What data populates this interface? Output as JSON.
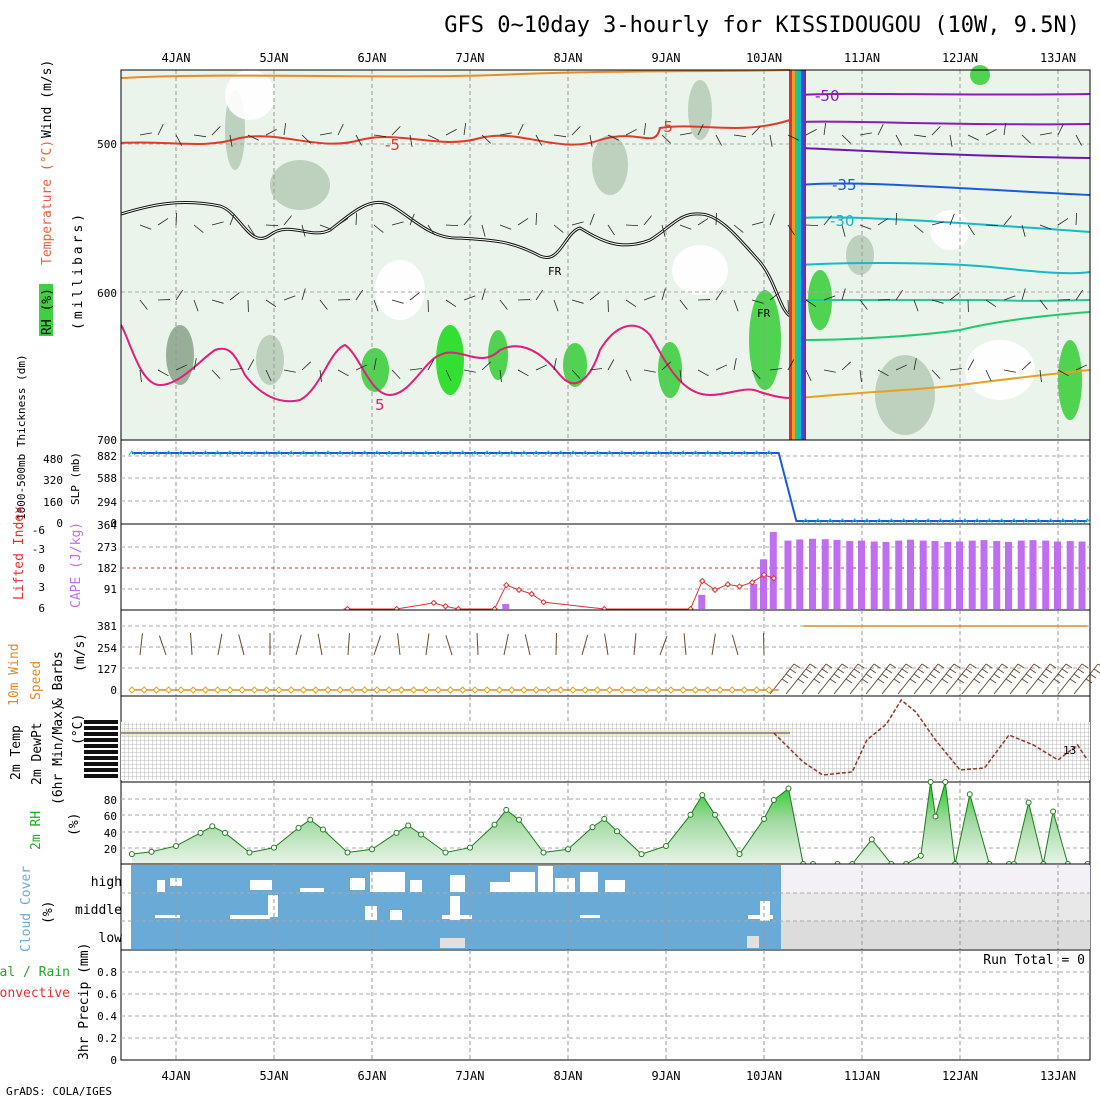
{
  "title": "GFS 0~10day 3-hourly for KISSIDOUGOU (10W, 9.5N)",
  "footer": "GrADS: COLA/IGES",
  "dates": [
    "4JAN",
    "5JAN",
    "6JAN",
    "7JAN",
    "8JAN",
    "9JAN",
    "10JAN",
    "11JAN",
    "12JAN",
    "13JAN"
  ],
  "colors": {
    "rh_light": "#e3f1e3",
    "rh_mid": "#b9ccb9",
    "rh_dark": "#8fa68f",
    "rh_green": "#3fcf3f",
    "cloud": "#6aaad6",
    "cape_bar": "#c06ef0",
    "li_line": "#e23030",
    "wind_line": "#e08a2a",
    "rh2m": "#1faa1f",
    "slp": "#1a5adf",
    "thick": "#18b8c8"
  },
  "chart_data": [
    {
      "type": "contour",
      "panel": "upper-air",
      "ylabel_parts": [
        "RH (%)",
        "Temperature (°C)",
        "Wind (m/s)"
      ],
      "ylabel_right": "(millibars)",
      "yticks": [
        500,
        600,
        700
      ],
      "ylim": [
        700,
        450
      ],
      "contour_labels": [
        {
          "text": "-5",
          "series": "T -5"
        },
        {
          "text": "-5",
          "series": "T -5"
        },
        {
          "text": "5",
          "series": "T 5"
        },
        {
          "text": "FR",
          "series": "freezing"
        },
        {
          "text": "FR",
          "series": "freezing"
        },
        {
          "text": "-50",
          "series": "T -50"
        },
        {
          "text": "-35",
          "series": "T -35"
        },
        {
          "text": "-30",
          "series": "T -30"
        }
      ]
    },
    {
      "type": "line",
      "panel": "thickness-slp",
      "ylabel_left": "1000-500mb Thickness (dm)",
      "ylabel_right": "SLP (mb)",
      "yticks_left": [
        0,
        160,
        320,
        480
      ],
      "yticks_right": [
        0,
        294,
        588,
        882
      ],
      "series": [
        {
          "name": "SLP",
          "x_day": [
            3.55,
            10.15,
            10.33,
            13.3
          ],
          "values": [
            922,
            922,
            0,
            0
          ]
        }
      ]
    },
    {
      "type": "bar",
      "panel": "cape-li",
      "ylabel_left": "Lifted Index",
      "ylabel_right": "CAPE (J/kg)",
      "yticks_left": [
        -6,
        -3,
        0,
        3,
        6
      ],
      "yticks_right": [
        91,
        182,
        273,
        364
      ],
      "cape_x_day": [
        5.75,
        7.37,
        9.37,
        9.9,
        10.0,
        10.1,
        10.25,
        10.37,
        10.5,
        10.63,
        10.75,
        10.88,
        11.0,
        11.13,
        11.25,
        11.38,
        11.5,
        11.63,
        11.75,
        11.88,
        12.0,
        12.13,
        12.25,
        12.38,
        12.5,
        12.63,
        12.75,
        12.88,
        13.0,
        13.13,
        13.25
      ],
      "cape_values": [
        4,
        22,
        62,
        110,
        218,
        338,
        300,
        305,
        308,
        306,
        303,
        298,
        300,
        296,
        294,
        300,
        304,
        300,
        298,
        294,
        296,
        300,
        302,
        298,
        294,
        300,
        302,
        300,
        296,
        298,
        296
      ],
      "li_x_day": [
        5.75,
        6.25,
        6.63,
        6.75,
        6.88,
        7.25,
        7.37,
        7.5,
        7.63,
        7.75,
        8.37,
        9.25,
        9.37,
        9.5,
        9.63,
        9.75,
        9.88,
        10.0,
        10.1
      ],
      "li_values": [
        6,
        6,
        5.1,
        5.6,
        6,
        6,
        2.5,
        3.2,
        3.8,
        5,
        6,
        6,
        1.9,
        3.2,
        2.4,
        2.7,
        2.1,
        1,
        1.5
      ]
    },
    {
      "type": "line",
      "panel": "10m-wind",
      "ylabel": "10m Wind Speed & Barbs (m/s)",
      "yticks": [
        0,
        127,
        254,
        381
      ],
      "series": [
        {
          "name": "speed",
          "before_x_day": [
            3.55,
            10.15
          ],
          "before_value": 0,
          "after_x_day": [
            10.4,
            13.3
          ],
          "after_value": 381
        }
      ]
    },
    {
      "type": "line",
      "panel": "2m-temp",
      "ylabel": "2m Temp 2m DewPt (6hr Min/Max) (°C)",
      "annotation": "13",
      "series": [
        {
          "name": "temp",
          "x_day": [
            10.1,
            10.4,
            10.6,
            10.9,
            11.05,
            11.25,
            11.4,
            11.55,
            11.75,
            12.0,
            12.25,
            12.5,
            12.75,
            13.0,
            13.2,
            13.3
          ]
        }
      ]
    },
    {
      "type": "area",
      "panel": "2m-rh",
      "ylabel": "2m RH (%)",
      "yticks": [
        20,
        40,
        60,
        80
      ],
      "ylim": [
        0,
        100
      ],
      "x_day": [
        3.55,
        3.75,
        4.0,
        4.25,
        4.37,
        4.5,
        4.75,
        5.0,
        5.25,
        5.37,
        5.5,
        5.75,
        6.0,
        6.25,
        6.37,
        6.5,
        6.75,
        7.0,
        7.25,
        7.37,
        7.5,
        7.75,
        8.0,
        8.25,
        8.37,
        8.5,
        8.75,
        9.0,
        9.25,
        9.37,
        9.5,
        9.75,
        10.0,
        10.1,
        10.25,
        10.4,
        10.5,
        10.75,
        10.9,
        11.1,
        11.3,
        11.45,
        11.6,
        11.7,
        11.75,
        11.85,
        11.95,
        12.1,
        12.3,
        12.5,
        12.55,
        12.7,
        12.85,
        12.95,
        13.1,
        13.3
      ],
      "values": [
        12,
        15,
        22,
        38,
        46,
        38,
        14,
        20,
        44,
        54,
        42,
        14,
        18,
        38,
        47,
        36,
        14,
        20,
        48,
        66,
        54,
        14,
        18,
        45,
        55,
        40,
        12,
        22,
        60,
        84,
        60,
        12,
        55,
        78,
        92,
        0,
        0,
        0,
        0,
        30,
        0,
        0,
        10,
        100,
        58,
        100,
        0,
        85,
        0,
        0,
        0,
        75,
        0,
        64,
        0,
        0
      ]
    },
    {
      "type": "bar",
      "panel": "cloud-cover",
      "ylabel": "Cloud Cover (%)",
      "categories": [
        "high",
        "middle",
        "low"
      ],
      "covered_until_day": 10.18
    },
    {
      "type": "line",
      "panel": "precip",
      "ylabel": "3hr Precip (mm)",
      "legend_left": [
        "tal / Rain",
        "Convective"
      ],
      "yticks": [
        0,
        0.2,
        0.4,
        0.6,
        0.8
      ],
      "ylim": [
        0,
        1
      ],
      "run_total": "Run Total = 0"
    }
  ]
}
